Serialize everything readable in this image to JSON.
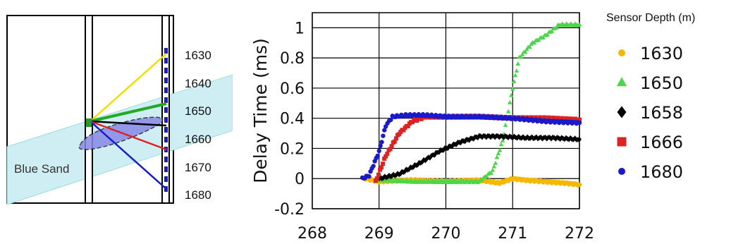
{
  "diagram": {
    "band_label": "Blue Sand",
    "depth_labels": [
      "1630",
      "1640",
      "1650",
      "1660",
      "1670",
      "1680"
    ]
  },
  "chart_data": {
    "type": "scatter",
    "title": "",
    "xlabel": "",
    "ylabel": "Delay Time (ms)",
    "xlim": [
      268,
      272
    ],
    "ylim": [
      -0.2,
      1.1
    ],
    "xticks": [
      "268",
      "269",
      "270",
      "271",
      "272"
    ],
    "yticks": [
      "-0.2",
      "0",
      "0.2",
      "0.4",
      "0.6",
      "0.8",
      "1"
    ],
    "grid": true,
    "legend": {
      "title": "Sensor Depth (m)",
      "position": "right"
    },
    "series": [
      {
        "name": "1630",
        "color": "#f5b800",
        "marker": "circle",
        "x": [
          268.8,
          269.0,
          269.5,
          270.0,
          270.5,
          270.8,
          271.0,
          271.2,
          271.5,
          271.8,
          272.0
        ],
        "y": [
          0.0,
          -0.02,
          -0.01,
          -0.02,
          -0.01,
          -0.03,
          0.0,
          -0.01,
          -0.02,
          -0.03,
          -0.04
        ]
      },
      {
        "name": "1650",
        "color": "#4cd64c",
        "marker": "triangle",
        "x": [
          269.0,
          269.5,
          270.0,
          270.5,
          270.7,
          270.85,
          271.0,
          271.1,
          271.3,
          271.5,
          271.7,
          272.0
        ],
        "y": [
          -0.01,
          -0.02,
          -0.02,
          -0.02,
          0.05,
          0.25,
          0.6,
          0.8,
          0.9,
          0.95,
          1.02,
          1.02
        ]
      },
      {
        "name": "1658",
        "color": "#000000",
        "marker": "diamond",
        "x": [
          269.0,
          269.3,
          269.6,
          269.9,
          270.2,
          270.5,
          270.8,
          271.2,
          271.6,
          272.0
        ],
        "y": [
          0.0,
          0.03,
          0.1,
          0.18,
          0.24,
          0.28,
          0.28,
          0.27,
          0.27,
          0.26
        ]
      },
      {
        "name": "1666",
        "color": "#dd2222",
        "marker": "square",
        "x": [
          268.95,
          269.1,
          269.3,
          269.5,
          269.7,
          270.0,
          270.5,
          271.0,
          271.5,
          272.0
        ],
        "y": [
          -0.02,
          0.15,
          0.3,
          0.38,
          0.41,
          0.41,
          0.41,
          0.4,
          0.4,
          0.39
        ]
      },
      {
        "name": "1680",
        "color": "#1a1acc",
        "marker": "circle",
        "x": [
          268.75,
          268.85,
          269.0,
          269.1,
          269.2,
          269.4,
          269.7,
          270.0,
          270.5,
          271.0,
          271.5,
          272.0
        ],
        "y": [
          0.0,
          0.02,
          0.18,
          0.35,
          0.41,
          0.42,
          0.42,
          0.41,
          0.41,
          0.4,
          0.38,
          0.37
        ]
      }
    ]
  }
}
